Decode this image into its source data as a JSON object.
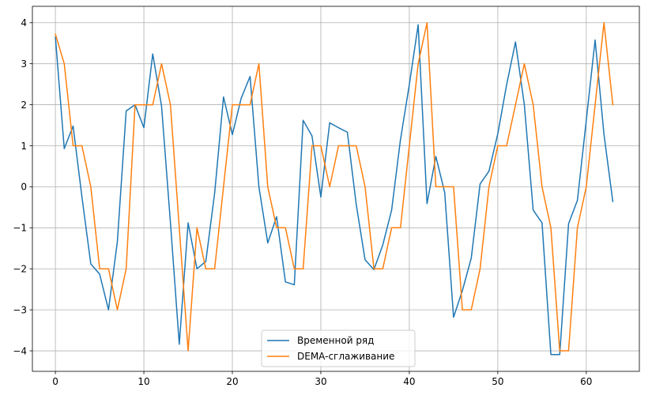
{
  "chart_data": {
    "type": "line",
    "title": "",
    "xlabel": "",
    "ylabel": "",
    "xlim": [
      -2.6,
      66
    ],
    "ylim": [
      -4.5,
      4.4
    ],
    "xticks": [
      0,
      10,
      20,
      30,
      40,
      50,
      60
    ],
    "yticks": [
      -4,
      -3,
      -2,
      -1,
      0,
      1,
      2,
      3,
      4
    ],
    "grid": true,
    "legend_position": "bottom-center",
    "series": [
      {
        "name": "Временной ряд",
        "color": "#1f77b4",
        "x": [
          0,
          1,
          2,
          3,
          4,
          5,
          6,
          7,
          8,
          9,
          10,
          11,
          12,
          13,
          14,
          15,
          16,
          17,
          18,
          19,
          20,
          21,
          22,
          23,
          24,
          25,
          26,
          27,
          28,
          29,
          30,
          31,
          32,
          33,
          34,
          35,
          36,
          37,
          38,
          39,
          40,
          41,
          42,
          43,
          44,
          45,
          46,
          47,
          48,
          49,
          50,
          51,
          52,
          53,
          54,
          55,
          56,
          57,
          58,
          59,
          60,
          61,
          62,
          63
        ],
        "values": [
          3.65,
          0.93,
          1.48,
          -0.25,
          -1.88,
          -2.13,
          -3.0,
          -1.34,
          1.85,
          2.0,
          1.44,
          3.24,
          1.96,
          -0.87,
          -3.84,
          -0.88,
          -2.0,
          -1.82,
          -0.15,
          2.19,
          1.27,
          2.16,
          2.69,
          0.0,
          -1.37,
          -0.73,
          -2.32,
          -2.39,
          1.62,
          1.24,
          -0.25,
          1.56,
          1.44,
          1.33,
          -0.43,
          -1.78,
          -2.02,
          -1.42,
          -0.57,
          1.15,
          2.49,
          3.95,
          -0.41,
          0.74,
          -0.14,
          -3.18,
          -2.53,
          -1.74,
          0.07,
          0.38,
          1.29,
          2.49,
          3.53,
          2.0,
          -0.57,
          -0.88,
          -4.09,
          -4.09,
          -0.9,
          -0.33,
          1.62,
          3.58,
          1.28,
          -0.36
        ]
      },
      {
        "name": "DEMA-сглаживание",
        "color": "#ff7f0e",
        "x": [
          0,
          1,
          2,
          3,
          4,
          5,
          6,
          7,
          8,
          9,
          10,
          11,
          12,
          13,
          14,
          15,
          16,
          17,
          18,
          19,
          20,
          21,
          22,
          23,
          24,
          25,
          26,
          27,
          28,
          29,
          30,
          31,
          32,
          33,
          34,
          35,
          36,
          37,
          38,
          39,
          40,
          41,
          42,
          43,
          44,
          45,
          46,
          47,
          48,
          49,
          50,
          51,
          52,
          53,
          54,
          55,
          56,
          57,
          58,
          59,
          60,
          61,
          62,
          63
        ],
        "values": [
          3.72,
          3.0,
          1.0,
          1.0,
          0.0,
          -2.0,
          -2.0,
          -3.0,
          -2.0,
          2.0,
          2.0,
          2.0,
          3.0,
          2.0,
          -1.0,
          -4.0,
          -1.0,
          -2.0,
          -2.0,
          0.0,
          2.0,
          2.0,
          2.0,
          3.0,
          0.0,
          -1.0,
          -1.0,
          -2.0,
          -2.0,
          1.0,
          1.0,
          0.0,
          1.0,
          1.0,
          1.0,
          0.0,
          -2.0,
          -2.0,
          -1.0,
          -1.0,
          1.0,
          3.0,
          4.0,
          0.0,
          0.0,
          0.0,
          -3.0,
          -3.0,
          -2.0,
          0.0,
          1.0,
          1.0,
          2.0,
          3.0,
          2.0,
          0.0,
          -1.0,
          -4.0,
          -4.0,
          -1.0,
          0.0,
          2.0,
          4.0,
          2.0
        ]
      }
    ]
  }
}
